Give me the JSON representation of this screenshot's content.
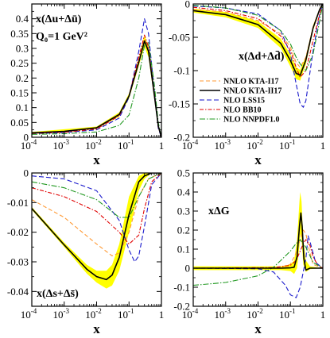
{
  "chart_data": [
    {
      "type": "line",
      "annotation": "x(Δu+Δū)",
      "annotation2": "Q₀=1 GeV²",
      "xlabel": "x",
      "xscale": "log",
      "xlim": [
        0.0001,
        1
      ],
      "ylim": [
        0,
        0.45
      ],
      "xticks": [
        {
          "v": 0.0001,
          "b": "10",
          "e": "-4"
        },
        {
          "v": 0.001,
          "b": "10",
          "e": "-3"
        },
        {
          "v": 0.01,
          "b": "10",
          "e": "-2"
        },
        {
          "v": 0.1,
          "b": "10",
          "e": "-1"
        },
        {
          "v": 1,
          "b": "1",
          "e": ""
        }
      ],
      "yticks": [
        {
          "v": 0,
          "l": "0"
        },
        {
          "v": 0.05,
          "l": "0.05"
        },
        {
          "v": 0.1,
          "l": "0.1"
        },
        {
          "v": 0.15,
          "l": "0.15"
        },
        {
          "v": 0.2,
          "l": "0.2"
        },
        {
          "v": 0.25,
          "l": "0.25"
        },
        {
          "v": 0.3,
          "l": "0.3"
        },
        {
          "v": 0.35,
          "l": "0.35"
        },
        {
          "v": 0.4,
          "l": "0.4"
        }
      ],
      "band": {
        "x": [
          0.0001,
          0.01,
          0.05,
          0.1,
          0.2,
          0.3,
          0.4,
          0.6,
          0.8,
          1
        ],
        "lo": [
          0.012,
          0.028,
          0.07,
          0.13,
          0.24,
          0.305,
          0.27,
          0.13,
          0.03,
          0
        ],
        "hi": [
          0.018,
          0.036,
          0.084,
          0.148,
          0.266,
          0.345,
          0.305,
          0.16,
          0.045,
          0
        ]
      },
      "series": [
        {
          "id": "nnlo-kta-i17-dashed",
          "x": [
            0.0001,
            0.001,
            0.01,
            0.05,
            0.1,
            0.2,
            0.3,
            0.4,
            0.6,
            0.8,
            1
          ],
          "y": [
            0.013,
            0.018,
            0.03,
            0.075,
            0.14,
            0.26,
            0.33,
            0.3,
            0.15,
            0.035,
            0
          ]
        },
        {
          "id": "nnlo-kta-ii17",
          "x": [
            0.0001,
            0.001,
            0.01,
            0.05,
            0.1,
            0.2,
            0.3,
            0.4,
            0.6,
            0.8,
            1
          ],
          "y": [
            0.015,
            0.02,
            0.032,
            0.077,
            0.139,
            0.253,
            0.325,
            0.29,
            0.145,
            0.038,
            0
          ]
        },
        {
          "id": "nlo-lss15",
          "x": [
            0.0001,
            0.001,
            0.01,
            0.05,
            0.1,
            0.2,
            0.3,
            0.4,
            0.6,
            0.8,
            1
          ],
          "y": [
            0.012,
            0.016,
            0.025,
            0.065,
            0.135,
            0.29,
            0.4,
            0.35,
            0.16,
            0.03,
            0
          ]
        },
        {
          "id": "nlo-bb10",
          "x": [
            0.0001,
            0.001,
            0.01,
            0.05,
            0.1,
            0.2,
            0.3,
            0.4,
            0.6,
            0.8,
            1
          ],
          "y": [
            0.013,
            0.017,
            0.028,
            0.072,
            0.14,
            0.27,
            0.345,
            0.305,
            0.15,
            0.035,
            0
          ]
        },
        {
          "id": "nlo-nnpdf10",
          "x": [
            0.0001,
            0.001,
            0.01,
            0.05,
            0.1,
            0.2,
            0.3,
            0.4,
            0.6,
            0.8,
            1
          ],
          "y": [
            0.01,
            0.012,
            0.018,
            0.04,
            0.075,
            0.2,
            0.31,
            0.32,
            0.18,
            0.05,
            0
          ]
        }
      ]
    },
    {
      "type": "line",
      "annotation": "x(Δd+Δd̄)",
      "xlabel": "x",
      "xscale": "log",
      "xlim": [
        0.0001,
        1
      ],
      "ylim": [
        -0.2,
        0
      ],
      "xticks": [
        {
          "v": 0.0001,
          "b": "10",
          "e": "-4"
        },
        {
          "v": 0.001,
          "b": "10",
          "e": "-3"
        },
        {
          "v": 0.01,
          "b": "10",
          "e": "-2"
        },
        {
          "v": 0.1,
          "b": "10",
          "e": "-1"
        },
        {
          "v": 1,
          "b": "1",
          "e": ""
        }
      ],
      "yticks": [
        {
          "v": 0,
          "l": "0"
        },
        {
          "v": -0.05,
          "l": "-0.05"
        },
        {
          "v": -0.1,
          "l": "-0.1"
        },
        {
          "v": -0.15,
          "l": "-0.15"
        },
        {
          "v": -0.2,
          "l": "-0.2"
        }
      ],
      "legend": [
        "NNLO KTA-I17",
        "NNLO KTA-II17",
        "NLO LSS15",
        "NLO BB10",
        "NLO NNPDF1.0"
      ],
      "band": {
        "x": [
          0.0001,
          0.001,
          0.01,
          0.05,
          0.1,
          0.15,
          0.2,
          0.3,
          0.5,
          0.8,
          1
        ],
        "lo": [
          -0.013,
          -0.02,
          -0.036,
          -0.066,
          -0.094,
          -0.113,
          -0.115,
          -0.09,
          -0.04,
          -0.01,
          0
        ],
        "hi": [
          -0.007,
          -0.012,
          -0.026,
          -0.052,
          -0.076,
          -0.095,
          -0.099,
          -0.078,
          -0.032,
          -0.006,
          0
        ]
      },
      "series": [
        {
          "id": "nnlo-kta-i17",
          "x": [
            0.0001,
            0.001,
            0.01,
            0.05,
            0.1,
            0.15,
            0.2,
            0.3,
            0.5,
            0.8,
            1
          ],
          "y": [
            -0.008,
            -0.012,
            -0.025,
            -0.045,
            -0.065,
            -0.088,
            -0.095,
            -0.08,
            -0.035,
            -0.008,
            0
          ]
        },
        {
          "id": "nnlo-kta-ii17",
          "x": [
            0.0001,
            0.001,
            0.01,
            0.05,
            0.1,
            0.15,
            0.2,
            0.3,
            0.5,
            0.8,
            1
          ],
          "y": [
            -0.01,
            -0.016,
            -0.031,
            -0.059,
            -0.085,
            -0.104,
            -0.107,
            -0.084,
            -0.036,
            -0.008,
            0
          ]
        },
        {
          "id": "nlo-lss15",
          "x": [
            0.0001,
            0.001,
            0.01,
            0.05,
            0.1,
            0.15,
            0.2,
            0.25,
            0.3,
            0.5,
            0.8,
            1
          ],
          "y": [
            -0.003,
            -0.006,
            -0.015,
            -0.04,
            -0.075,
            -0.12,
            -0.15,
            -0.155,
            -0.145,
            -0.07,
            -0.015,
            0
          ]
        },
        {
          "id": "nlo-bb10",
          "x": [
            0.0001,
            0.001,
            0.01,
            0.05,
            0.1,
            0.15,
            0.2,
            0.3,
            0.5,
            0.8,
            1
          ],
          "y": [
            -0.005,
            -0.01,
            -0.022,
            -0.048,
            -0.07,
            -0.095,
            -0.11,
            -0.1,
            -0.055,
            -0.015,
            0
          ]
        },
        {
          "id": "nlo-nnpdf10",
          "x": [
            0.0001,
            0.001,
            0.01,
            0.05,
            0.1,
            0.15,
            0.2,
            0.3,
            0.5,
            0.8,
            1
          ],
          "y": [
            -0.002,
            -0.006,
            -0.017,
            -0.04,
            -0.06,
            -0.08,
            -0.09,
            -0.1,
            -0.075,
            -0.025,
            0
          ]
        }
      ]
    },
    {
      "type": "line",
      "annotation": "x(Δs+Δs̄)",
      "xlabel": "x",
      "xscale": "log",
      "xlim": [
        0.0001,
        1
      ],
      "ylim": [
        -0.045,
        0
      ],
      "xticks": [
        {
          "v": 0.0001,
          "b": "10",
          "e": "-4"
        },
        {
          "v": 0.001,
          "b": "10",
          "e": "-3"
        },
        {
          "v": 0.01,
          "b": "10",
          "e": "-2"
        },
        {
          "v": 0.1,
          "b": "10",
          "e": "-1"
        },
        {
          "v": 1,
          "b": "1",
          "e": ""
        }
      ],
      "yticks": [
        {
          "v": 0,
          "l": "0"
        },
        {
          "v": -0.01,
          "l": "-0.01"
        },
        {
          "v": -0.02,
          "l": "-0.02"
        },
        {
          "v": -0.03,
          "l": "-0.03"
        },
        {
          "v": -0.04,
          "l": "-0.04"
        }
      ],
      "band": {
        "x": [
          0.0001,
          0.001,
          0.005,
          0.01,
          0.02,
          0.03,
          0.05,
          0.1,
          0.2,
          0.3,
          0.5,
          1
        ],
        "lo": [
          -0.0125,
          -0.025,
          -0.034,
          -0.037,
          -0.039,
          -0.038,
          -0.033,
          -0.02,
          -0.006,
          -0.002,
          0,
          0
        ],
        "hi": [
          -0.0115,
          -0.0235,
          -0.031,
          -0.033,
          -0.033,
          -0.031,
          -0.024,
          -0.008,
          -0.001,
          0,
          0,
          0
        ]
      },
      "series": [
        {
          "id": "nnlo-kta-i17",
          "x": [
            0.0001,
            0.001,
            0.01,
            0.03,
            0.05,
            0.1,
            0.2,
            0.4,
            1
          ],
          "y": [
            -0.009,
            -0.015,
            -0.024,
            -0.028,
            -0.027,
            -0.02,
            -0.008,
            -0.002,
            0
          ]
        },
        {
          "id": "nnlo-kta-ii17",
          "x": [
            0.0001,
            0.001,
            0.005,
            0.01,
            0.02,
            0.03,
            0.05,
            0.1,
            0.2,
            0.3,
            0.5,
            1
          ],
          "y": [
            -0.012,
            -0.0243,
            -0.0325,
            -0.035,
            -0.036,
            -0.0345,
            -0.0285,
            -0.014,
            -0.003,
            -0.001,
            0,
            0
          ]
        },
        {
          "id": "nlo-lss15",
          "x": [
            0.0001,
            0.001,
            0.01,
            0.05,
            0.1,
            0.15,
            0.2,
            0.3,
            0.5,
            1
          ],
          "y": [
            -0.001,
            -0.002,
            -0.006,
            -0.016,
            -0.026,
            -0.03,
            -0.028,
            -0.018,
            -0.004,
            0
          ]
        },
        {
          "id": "nlo-bb10",
          "x": [
            0.0001,
            0.001,
            0.01,
            0.05,
            0.1,
            0.2,
            0.3,
            0.5,
            1
          ],
          "y": [
            -0.005,
            -0.008,
            -0.013,
            -0.02,
            -0.024,
            -0.021,
            -0.012,
            -0.003,
            0
          ]
        },
        {
          "id": "nlo-nnpdf10",
          "x": [
            0.0001,
            0.001,
            0.01,
            0.05,
            0.1,
            0.2,
            0.4,
            1
          ],
          "y": [
            -0.003,
            -0.005,
            -0.009,
            -0.015,
            -0.015,
            -0.008,
            -0.002,
            0
          ]
        }
      ]
    },
    {
      "type": "line",
      "annotation": "xΔG",
      "xlabel": "x",
      "xscale": "log",
      "xlim": [
        0.0001,
        1
      ],
      "ylim": [
        -0.2,
        0.5
      ],
      "xticks": [
        {
          "v": 0.0001,
          "b": "10",
          "e": "-4"
        },
        {
          "v": 0.001,
          "b": "10",
          "e": "-3"
        },
        {
          "v": 0.01,
          "b": "10",
          "e": "-2"
        },
        {
          "v": 0.1,
          "b": "10",
          "e": "-1"
        },
        {
          "v": 1,
          "b": "1",
          "e": ""
        }
      ],
      "yticks": [
        {
          "v": 0.5,
          "l": "0.5"
        },
        {
          "v": 0.4,
          "l": "0.4"
        },
        {
          "v": 0.3,
          "l": "0.3"
        },
        {
          "v": 0.2,
          "l": "0.2"
        },
        {
          "v": 0.1,
          "l": "0.1"
        },
        {
          "v": 0,
          "l": "0"
        },
        {
          "v": -0.1,
          "l": "-0.1"
        },
        {
          "v": -0.2,
          "l": "-0.2"
        }
      ],
      "band": {
        "x": [
          0.0001,
          0.05,
          0.1,
          0.13,
          0.16,
          0.19,
          0.2,
          0.22,
          0.25,
          0.3,
          0.4,
          1
        ],
        "lo": [
          -0.01,
          -0.01,
          -0.015,
          -0.03,
          0.0,
          0.12,
          0.18,
          0.15,
          0.02,
          -0.02,
          -0.005,
          0
        ],
        "hi": [
          0.01,
          0.01,
          0.02,
          0.04,
          0.15,
          0.35,
          0.4,
          0.35,
          0.15,
          0.04,
          0.01,
          0
        ]
      },
      "series": [
        {
          "id": "nnlo-kta-i17",
          "x": [
            0.0001,
            0.02,
            0.05,
            0.1,
            0.15,
            0.2,
            0.25,
            0.3,
            0.4,
            0.5,
            1
          ],
          "y": [
            0,
            0,
            0.005,
            0.02,
            0.08,
            0.15,
            0.2,
            0.18,
            0.08,
            0.02,
            0
          ]
        },
        {
          "id": "nnlo-kta-ii17",
          "x": [
            0.0001,
            0.05,
            0.1,
            0.13,
            0.16,
            0.19,
            0.21,
            0.23,
            0.26,
            0.3,
            0.4,
            1
          ],
          "y": [
            0,
            0,
            0.002,
            0.005,
            0.06,
            0.22,
            0.29,
            0.22,
            0.05,
            -0.01,
            0,
            0
          ]
        },
        {
          "id": "nlo-lss15",
          "x": [
            0.0001,
            0.01,
            0.03,
            0.07,
            0.1,
            0.15,
            0.2,
            0.3,
            0.35,
            0.4,
            0.6,
            1
          ],
          "y": [
            0,
            -0.003,
            -0.02,
            -0.09,
            -0.14,
            -0.155,
            -0.1,
            0.05,
            0.17,
            0.14,
            0.03,
            0
          ]
        },
        {
          "id": "nlo-bb10",
          "x": [
            0.0001,
            0.03,
            0.1,
            0.15,
            0.2,
            0.25,
            0.3,
            0.4,
            0.5,
            0.7,
            1
          ],
          "y": [
            0,
            0.003,
            0.015,
            0.04,
            0.09,
            0.13,
            0.15,
            0.12,
            0.06,
            0.015,
            0
          ]
        },
        {
          "id": "nlo-nnpdf10",
          "x": [
            0.0001,
            0.001,
            0.01,
            0.03,
            0.05,
            0.1,
            0.15,
            0.2,
            0.3,
            0.5,
            1
          ],
          "y": [
            -0.09,
            -0.075,
            -0.04,
            0.005,
            0.04,
            0.09,
            0.13,
            0.15,
            0.11,
            0.03,
            0
          ]
        }
      ]
    }
  ],
  "styles": {
    "band_color": "#ffff00",
    "line_colors": {
      "nnlo-kta-i17": "#ff9933",
      "nnlo-kta-i17-dashed": "#ff9933",
      "nnlo-kta-ii17": "#000000",
      "nlo-lss15": "#1a1acc",
      "nlo-bb10": "#e00000",
      "nlo-nnpdf10": "#229922"
    }
  }
}
